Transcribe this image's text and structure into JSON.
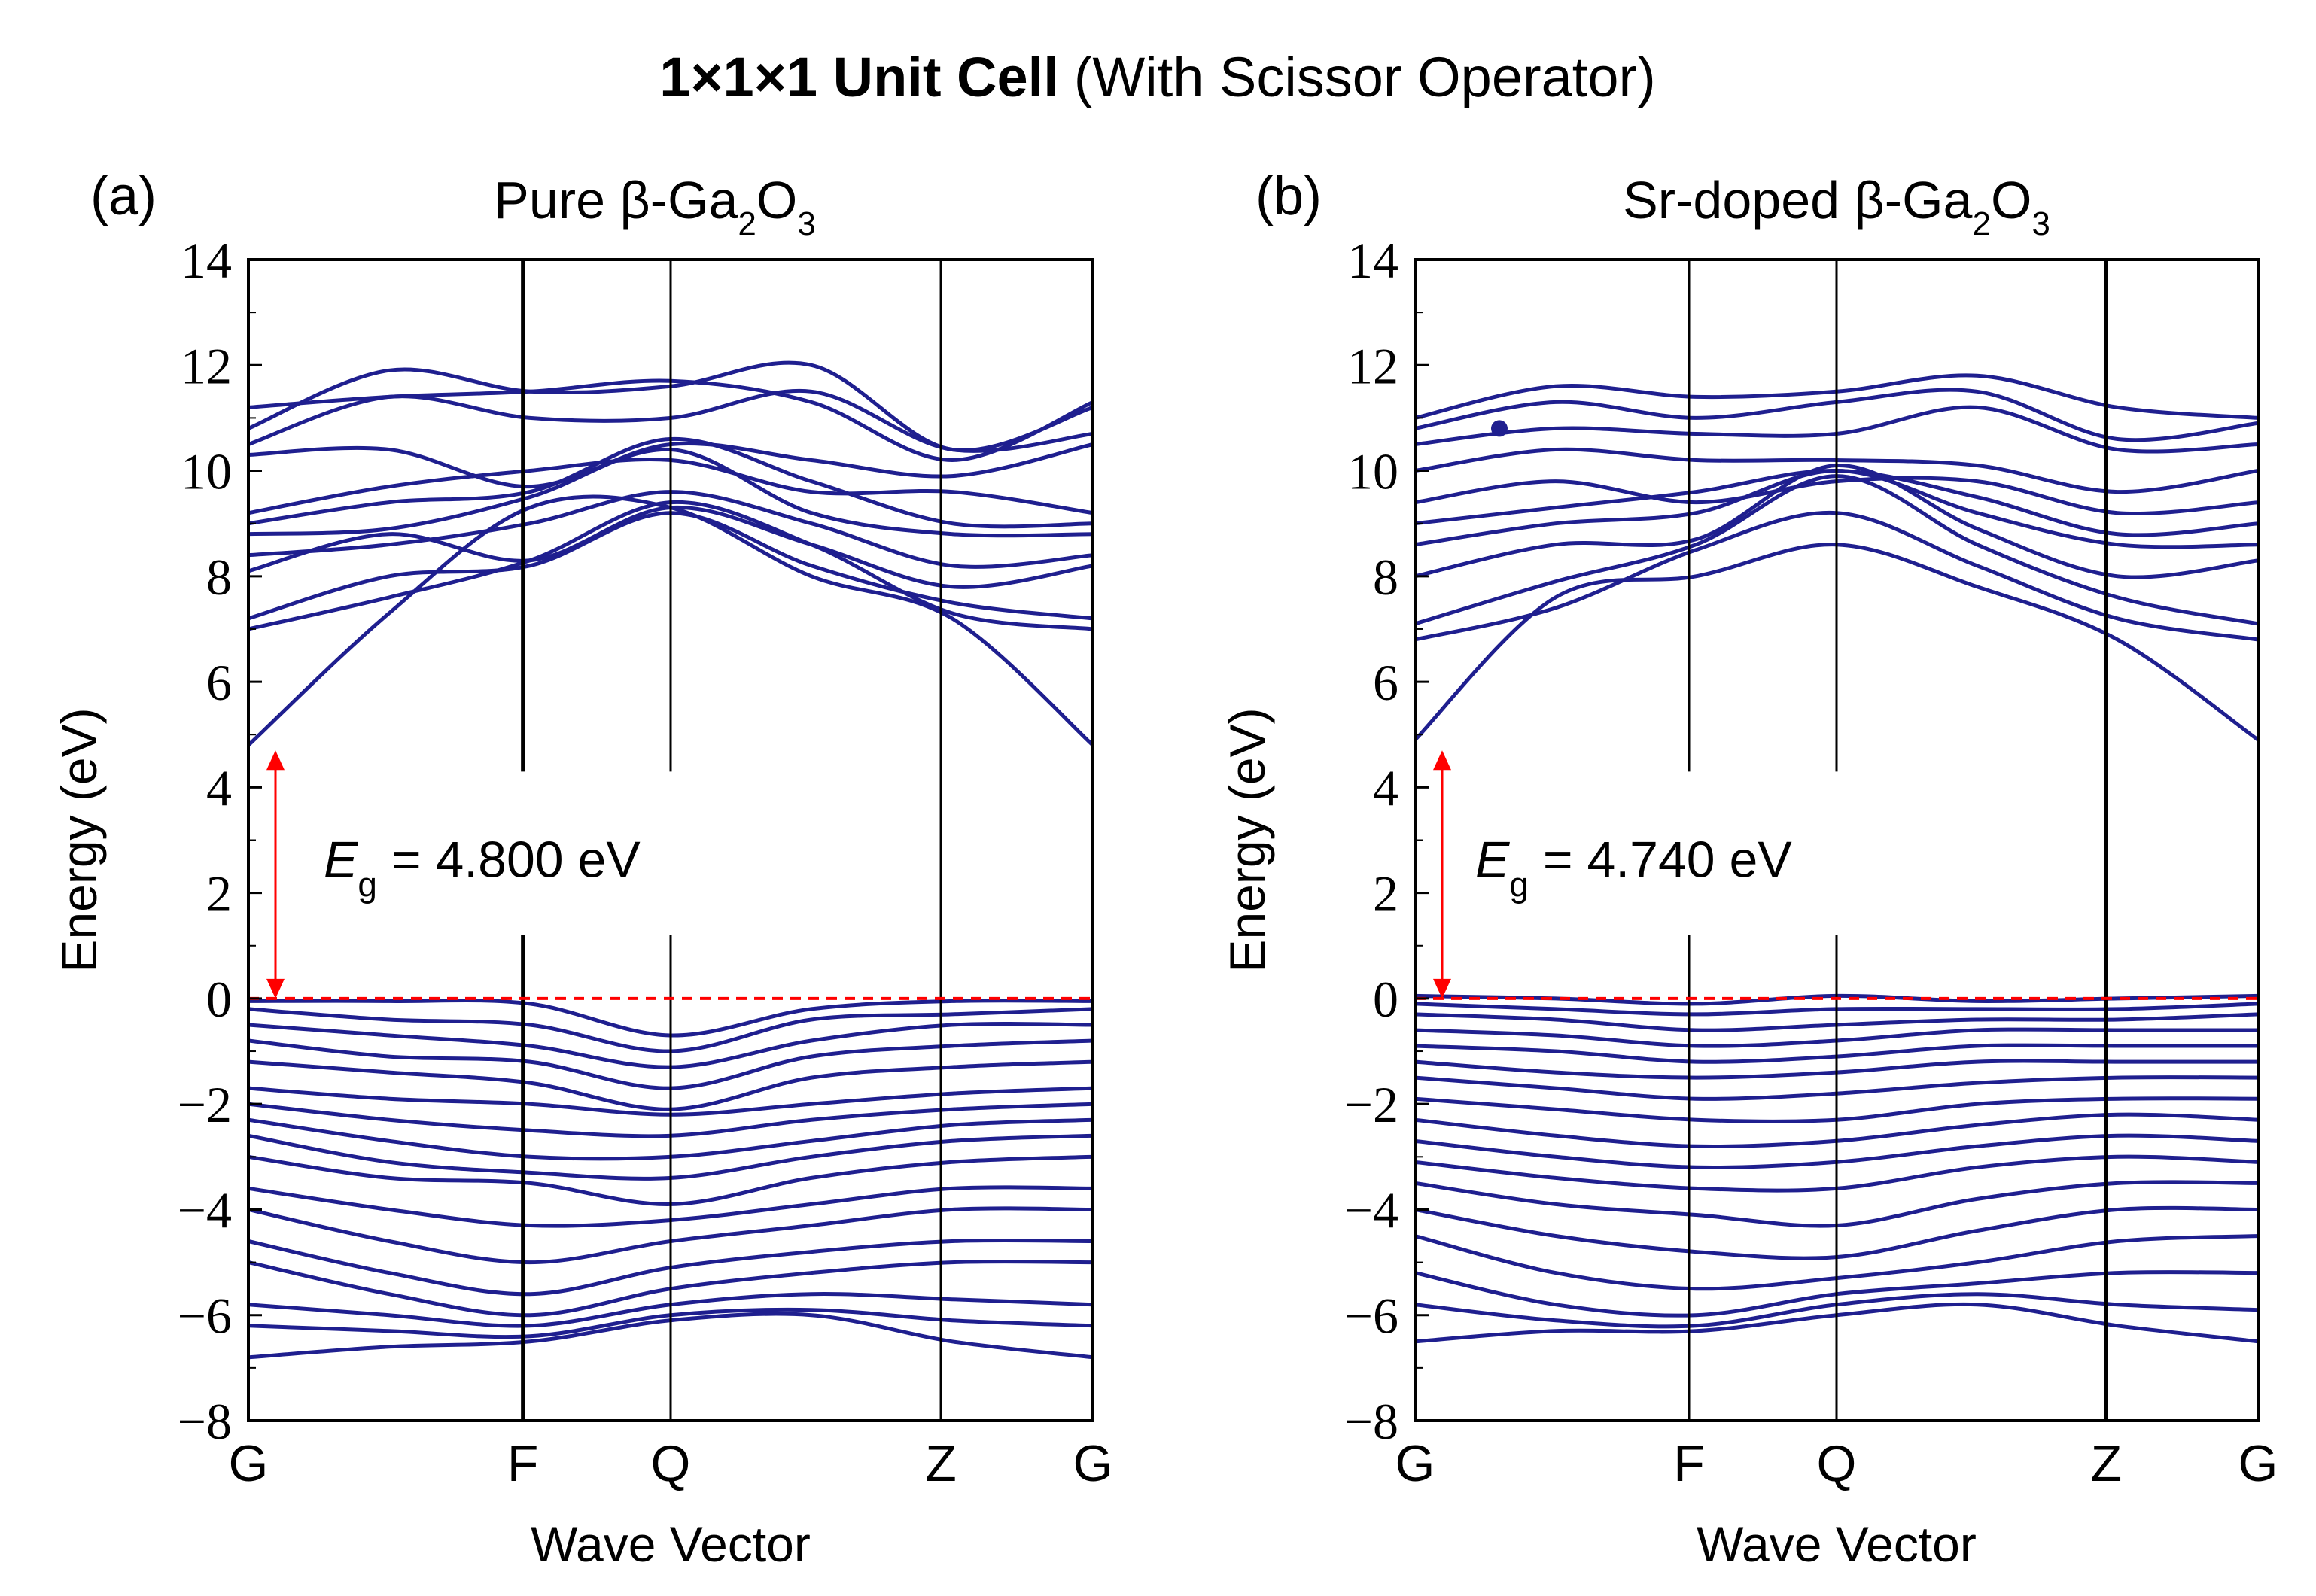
{
  "figure_title": {
    "bold_part": "1×1×1 Unit Cell",
    "rest": "(With Scissor Operator)"
  },
  "band_color": "#1f1f8f",
  "gap_color": "#ff0000",
  "chart_data": [
    {
      "type": "line",
      "panel_label": "(a)",
      "title": {
        "prefix": "Pure β-Ga",
        "sub1": "2",
        "mid": "O",
        "sub2": "3"
      },
      "xlabel": "Wave Vector",
      "ylabel": "Energy (eV)",
      "ylim": [
        -8,
        14
      ],
      "yticks": [
        {
          "value": 14,
          "label": "14"
        },
        {
          "value": 12,
          "label": "12"
        },
        {
          "value": 10,
          "label": "10"
        },
        {
          "value": 8,
          "label": "8"
        },
        {
          "value": 6,
          "label": "6"
        },
        {
          "value": 4,
          "label": "4"
        },
        {
          "value": 2,
          "label": "2"
        },
        {
          "value": 0,
          "label": "0"
        },
        {
          "value": -2,
          "label": "−2"
        },
        {
          "value": -4,
          "label": "−4"
        },
        {
          "value": -6,
          "label": "−6"
        },
        {
          "value": -8,
          "label": "−8"
        }
      ],
      "kpoints": [
        {
          "label": "G",
          "pos": 0.0
        },
        {
          "label": "F",
          "pos": 0.325
        },
        {
          "label": "Q",
          "pos": 0.5
        },
        {
          "label": "Z",
          "pos": 0.82
        },
        {
          "label": "G",
          "pos": 1.0
        }
      ],
      "gap": {
        "label_E": "E",
        "label_sub": "g",
        "label_value": " = 4.800 eV",
        "value": 4.8,
        "arrow_top": 4.7,
        "arrow_bottom": 0.0
      },
      "fermi_level": 0,
      "conduction_bands": [
        [
          4.8,
          7.3,
          9.3,
          9.3,
          8.0,
          7.2,
          4.8
        ],
        [
          7.0,
          7.6,
          8.3,
          9.4,
          8.6,
          7.3,
          7.0
        ],
        [
          7.2,
          8.0,
          8.2,
          9.2,
          8.2,
          7.5,
          7.2
        ],
        [
          8.1,
          8.8,
          8.3,
          9.3,
          8.6,
          7.8,
          8.2
        ],
        [
          8.4,
          8.6,
          9.0,
          9.6,
          9.0,
          8.2,
          8.4
        ],
        [
          8.8,
          8.9,
          9.5,
          10.4,
          9.2,
          8.8,
          8.8
        ],
        [
          9.0,
          9.4,
          9.6,
          10.6,
          9.8,
          9.0,
          9.0
        ],
        [
          9.2,
          9.7,
          10.0,
          10.2,
          9.6,
          9.6,
          9.2
        ],
        [
          10.3,
          10.4,
          9.7,
          10.5,
          10.2,
          9.9,
          10.5
        ],
        [
          10.5,
          11.4,
          11.0,
          11.0,
          11.5,
          10.4,
          10.7
        ],
        [
          10.8,
          11.9,
          11.5,
          11.6,
          12.0,
          10.4,
          11.2
        ],
        [
          11.2,
          11.4,
          11.5,
          11.7,
          11.3,
          10.2,
          11.3
        ]
      ],
      "valence_bands": [
        [
          -0.05,
          -0.05,
          -0.1,
          -0.7,
          -0.2,
          -0.05,
          -0.05
        ],
        [
          -0.2,
          -0.4,
          -0.5,
          -1.0,
          -0.4,
          -0.3,
          -0.2
        ],
        [
          -0.5,
          -0.7,
          -0.9,
          -1.3,
          -0.8,
          -0.5,
          -0.5
        ],
        [
          -0.8,
          -1.1,
          -1.2,
          -1.7,
          -1.1,
          -0.9,
          -0.8
        ],
        [
          -1.2,
          -1.4,
          -1.6,
          -2.1,
          -1.5,
          -1.3,
          -1.2
        ],
        [
          -1.7,
          -1.9,
          -2.0,
          -2.2,
          -2.0,
          -1.8,
          -1.7
        ],
        [
          -2.0,
          -2.3,
          -2.5,
          -2.6,
          -2.3,
          -2.1,
          -2.0
        ],
        [
          -2.3,
          -2.7,
          -3.0,
          -3.0,
          -2.7,
          -2.4,
          -2.3
        ],
        [
          -2.6,
          -3.1,
          -3.3,
          -3.4,
          -3.0,
          -2.7,
          -2.6
        ],
        [
          -3.0,
          -3.4,
          -3.5,
          -3.9,
          -3.4,
          -3.1,
          -3.0
        ],
        [
          -3.6,
          -4.0,
          -4.3,
          -4.2,
          -3.9,
          -3.6,
          -3.6
        ],
        [
          -4.0,
          -4.6,
          -5.0,
          -4.6,
          -4.3,
          -4.0,
          -4.0
        ],
        [
          -4.6,
          -5.2,
          -5.6,
          -5.1,
          -4.8,
          -4.6,
          -4.6
        ],
        [
          -5.0,
          -5.6,
          -6.0,
          -5.5,
          -5.2,
          -5.0,
          -5.0
        ],
        [
          -5.8,
          -6.0,
          -6.2,
          -5.8,
          -5.6,
          -5.7,
          -5.8
        ],
        [
          -6.2,
          -6.3,
          -6.4,
          -6.0,
          -5.9,
          -6.1,
          -6.2
        ],
        [
          -6.8,
          -6.6,
          -6.5,
          -6.1,
          -6.0,
          -6.5,
          -6.8
        ]
      ]
    },
    {
      "type": "line",
      "panel_label": "(b)",
      "title": {
        "prefix": "Sr-doped β-Ga",
        "sub1": "2",
        "mid": "O",
        "sub2": "3"
      },
      "xlabel": "Wave Vector",
      "ylabel": "Energy (eV)",
      "ylim": [
        -8,
        14
      ],
      "yticks": [
        {
          "value": 14,
          "label": "14"
        },
        {
          "value": 12,
          "label": "12"
        },
        {
          "value": 10,
          "label": "10"
        },
        {
          "value": 8,
          "label": "8"
        },
        {
          "value": 6,
          "label": "6"
        },
        {
          "value": 4,
          "label": "4"
        },
        {
          "value": 2,
          "label": "2"
        },
        {
          "value": 0,
          "label": "0"
        },
        {
          "value": -2,
          "label": "−2"
        },
        {
          "value": -4,
          "label": "−4"
        },
        {
          "value": -6,
          "label": "−6"
        },
        {
          "value": -8,
          "label": "−8"
        }
      ],
      "kpoints": [
        {
          "label": "G",
          "pos": 0.0
        },
        {
          "label": "F",
          "pos": 0.325
        },
        {
          "label": "Q",
          "pos": 0.5
        },
        {
          "label": "Z",
          "pos": 0.82
        },
        {
          "label": "G",
          "pos": 1.0
        }
      ],
      "gap": {
        "label_E": "E",
        "label_sub": "g",
        "label_value": " = 4.740 eV",
        "value": 4.74,
        "arrow_top": 4.7,
        "arrow_bottom": 0.0
      },
      "fermi_level": 0,
      "marker_point": {
        "k": 0.1,
        "energy": 10.8
      },
      "conduction_bands": [
        [
          4.9,
          7.6,
          8.0,
          8.6,
          7.8,
          6.8,
          4.9
        ],
        [
          6.8,
          7.4,
          8.5,
          9.2,
          8.2,
          7.2,
          6.8
        ],
        [
          7.1,
          7.9,
          8.6,
          9.9,
          8.6,
          7.6,
          7.1
        ],
        [
          8.0,
          8.6,
          8.7,
          10.1,
          8.9,
          8.0,
          8.3
        ],
        [
          8.6,
          9.0,
          9.2,
          10.0,
          9.2,
          8.6,
          8.6
        ],
        [
          9.0,
          9.3,
          9.6,
          10.0,
          9.5,
          8.8,
          9.0
        ],
        [
          9.4,
          9.8,
          9.4,
          9.8,
          9.8,
          9.2,
          9.4
        ],
        [
          10.0,
          10.4,
          10.2,
          10.2,
          10.1,
          9.6,
          10.0
        ],
        [
          10.5,
          10.8,
          10.7,
          10.7,
          11.2,
          10.4,
          10.5
        ],
        [
          10.8,
          11.3,
          11.0,
          11.3,
          11.5,
          10.6,
          10.9
        ],
        [
          11.0,
          11.6,
          11.4,
          11.5,
          11.8,
          11.2,
          11.0
        ]
      ],
      "valence_bands": [
        [
          0.05,
          0.0,
          -0.1,
          0.05,
          -0.05,
          0.0,
          0.05
        ],
        [
          -0.1,
          -0.2,
          -0.3,
          -0.2,
          -0.2,
          -0.2,
          -0.1
        ],
        [
          -0.3,
          -0.4,
          -0.6,
          -0.5,
          -0.4,
          -0.4,
          -0.3
        ],
        [
          -0.6,
          -0.7,
          -0.9,
          -0.8,
          -0.6,
          -0.6,
          -0.6
        ],
        [
          -0.9,
          -1.0,
          -1.2,
          -1.1,
          -0.9,
          -0.9,
          -0.9
        ],
        [
          -1.2,
          -1.4,
          -1.5,
          -1.4,
          -1.2,
          -1.2,
          -1.2
        ],
        [
          -1.5,
          -1.7,
          -1.9,
          -1.8,
          -1.6,
          -1.5,
          -1.5
        ],
        [
          -1.9,
          -2.1,
          -2.3,
          -2.3,
          -2.0,
          -1.9,
          -1.9
        ],
        [
          -2.3,
          -2.6,
          -2.8,
          -2.7,
          -2.4,
          -2.2,
          -2.3
        ],
        [
          -2.7,
          -3.0,
          -3.2,
          -3.1,
          -2.8,
          -2.6,
          -2.7
        ],
        [
          -3.1,
          -3.4,
          -3.6,
          -3.6,
          -3.2,
          -3.0,
          -3.1
        ],
        [
          -3.5,
          -3.9,
          -4.1,
          -4.3,
          -3.8,
          -3.5,
          -3.5
        ],
        [
          -4.0,
          -4.5,
          -4.8,
          -4.9,
          -4.4,
          -4.0,
          -4.0
        ],
        [
          -4.5,
          -5.2,
          -5.5,
          -5.3,
          -5.0,
          -4.6,
          -4.5
        ],
        [
          -5.2,
          -5.8,
          -6.0,
          -5.6,
          -5.4,
          -5.2,
          -5.2
        ],
        [
          -5.8,
          -6.1,
          -6.2,
          -5.8,
          -5.6,
          -5.8,
          -5.9
        ],
        [
          -6.5,
          -6.3,
          -6.3,
          -6.0,
          -5.8,
          -6.2,
          -6.5
        ]
      ]
    }
  ]
}
